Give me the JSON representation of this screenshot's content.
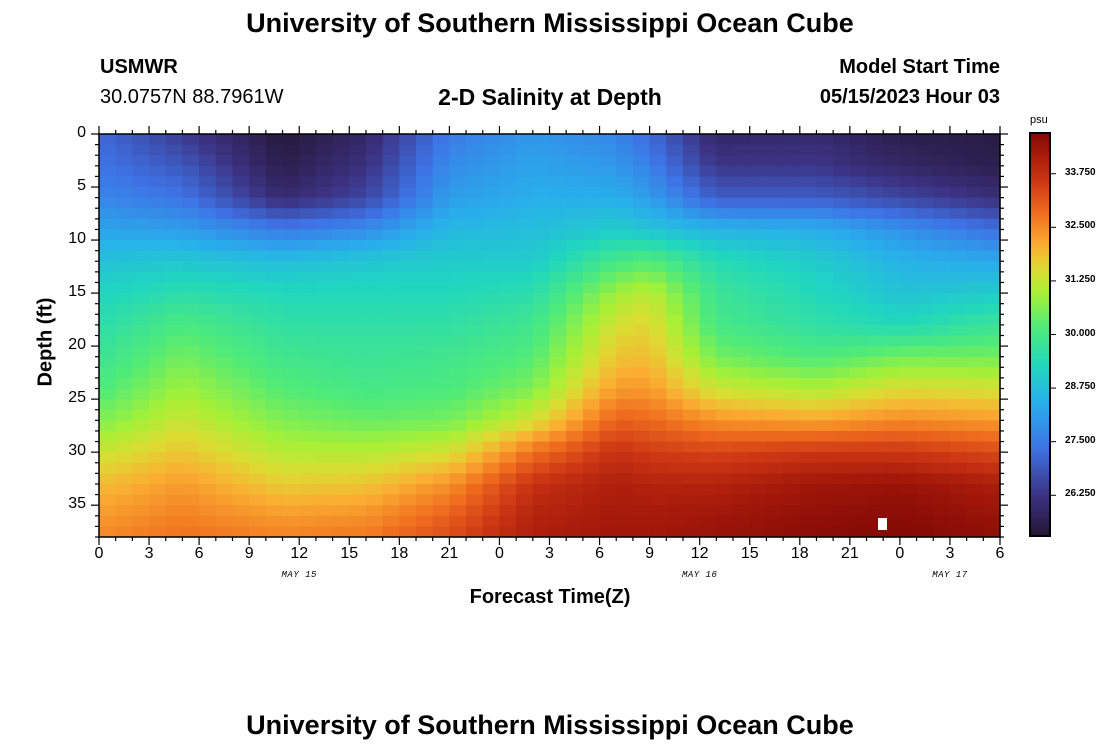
{
  "page": {
    "title": "University of Southern Mississippi Ocean Cube",
    "footer_title": "University of Southern Mississippi Ocean Cube",
    "station": "USMWR",
    "coords": "30.0757N  88.7961W",
    "plot_title": "2-D Salinity at Depth",
    "start_label": "Model Start Time",
    "start_value": "05/15/2023 Hour 03"
  },
  "chart_data": {
    "type": "heatmap",
    "title": "2-D Salinity at Depth",
    "xlabel": "Forecast Time(Z)",
    "ylabel": "Depth (ft)",
    "x_range_hours": [
      0,
      54
    ],
    "y_range_ft": [
      0,
      38
    ],
    "x_tick_labels": [
      "0",
      "3",
      "6",
      "9",
      "12",
      "15",
      "18",
      "21",
      "0",
      "3",
      "6",
      "9",
      "12",
      "15",
      "18",
      "21",
      "0",
      "3",
      "6"
    ],
    "y_ticks": [
      0,
      5,
      10,
      15,
      20,
      25,
      30,
      35
    ],
    "date_labels": [
      {
        "label": "MAY 15",
        "hour": 12
      },
      {
        "label": "MAY 16",
        "hour": 36
      },
      {
        "label": "MAY 17",
        "hour": 51
      }
    ],
    "colorbar": {
      "unit": "psu",
      "vmin": 25.3,
      "vmax": 34.7,
      "tick_values": [
        26.25,
        27.5,
        28.75,
        30.0,
        31.25,
        32.5,
        33.75
      ],
      "tick_labels": [
        "26.250",
        "27.500",
        "28.750",
        "30.000",
        "31.250",
        "32.500",
        "33.750"
      ]
    },
    "salinity_profiles": {
      "depths_ft": [
        0,
        3,
        6,
        9,
        12,
        15,
        18,
        21,
        24,
        27,
        30,
        33,
        36,
        38
      ],
      "columns": [
        {
          "hour": 0,
          "values": [
            27.2,
            27.4,
            27.7,
            28.2,
            28.8,
            29.2,
            29.5,
            29.8,
            30.1,
            30.6,
            31.3,
            31.9,
            32.3,
            32.5
          ]
        },
        {
          "hour": 5,
          "values": [
            26.4,
            26.9,
            27.4,
            28.1,
            28.9,
            29.5,
            30.1,
            30.5,
            30.9,
            31.3,
            31.8,
            32.3,
            32.6,
            32.8
          ]
        },
        {
          "hour": 11,
          "values": [
            25.4,
            25.6,
            26.0,
            27.5,
            28.7,
            29.3,
            29.6,
            29.9,
            30.2,
            30.6,
            31.1,
            31.7,
            32.3,
            32.6
          ]
        },
        {
          "hour": 16,
          "values": [
            25.9,
            26.2,
            26.6,
            27.8,
            28.9,
            29.3,
            29.6,
            29.8,
            30.0,
            30.4,
            31.1,
            31.8,
            32.4,
            32.7
          ]
        },
        {
          "hour": 21,
          "values": [
            27.5,
            27.8,
            28.1,
            28.6,
            29.0,
            29.3,
            29.6,
            29.9,
            30.1,
            30.5,
            31.4,
            32.4,
            33.0,
            33.3
          ]
        },
        {
          "hour": 26,
          "values": [
            28.0,
            28.2,
            28.4,
            28.7,
            29.0,
            29.5,
            29.9,
            30.2,
            30.6,
            31.4,
            32.8,
            33.7,
            34.0,
            34.1
          ]
        },
        {
          "hour": 31,
          "values": [
            27.7,
            28.0,
            28.4,
            29.0,
            30.0,
            30.9,
            31.4,
            31.8,
            32.3,
            33.0,
            33.7,
            34.1,
            34.2,
            34.3
          ]
        },
        {
          "hour": 33,
          "values": [
            27.2,
            27.6,
            28.1,
            28.8,
            30.2,
            31.2,
            31.6,
            31.9,
            32.3,
            32.9,
            33.5,
            34.0,
            34.2,
            34.3
          ]
        },
        {
          "hour": 37,
          "values": [
            25.9,
            26.3,
            27.0,
            28.5,
            29.4,
            29.8,
            30.0,
            30.5,
            31.3,
            32.4,
            33.4,
            34.0,
            34.3,
            34.4
          ]
        },
        {
          "hour": 43,
          "values": [
            26.0,
            26.3,
            27.0,
            28.4,
            29.0,
            29.3,
            29.6,
            30.1,
            31.0,
            32.2,
            33.6,
            34.3,
            34.5,
            34.6
          ]
        },
        {
          "hour": 48,
          "values": [
            25.6,
            25.9,
            26.6,
            27.9,
            28.5,
            28.8,
            29.3,
            30.5,
            31.5,
            32.5,
            33.6,
            34.4,
            34.6,
            34.7
          ]
        },
        {
          "hour": 54,
          "values": [
            25.5,
            25.6,
            26.1,
            27.3,
            28.3,
            29.0,
            29.8,
            30.5,
            31.4,
            32.3,
            33.3,
            34.1,
            34.4,
            34.5
          ]
        }
      ]
    }
  }
}
